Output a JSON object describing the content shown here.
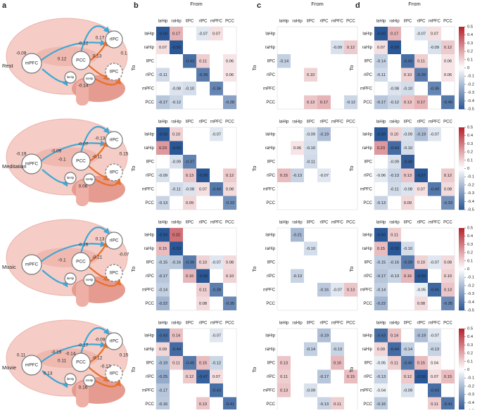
{
  "figure": {
    "panels": [
      "a",
      "b",
      "c",
      "d"
    ],
    "from_label": "From",
    "to_label": "To",
    "regions": [
      "laHip",
      "raHip",
      "lIPC",
      "rIPC",
      "mPFC",
      "PCC"
    ],
    "conditions": [
      "Rest",
      "Meditation",
      "Music",
      "Movie"
    ],
    "colorbar": {
      "zlim": [
        -0.5,
        0.5
      ],
      "ticks": [
        0.5,
        0.4,
        0.3,
        0.2,
        0.1,
        0,
        -0.1,
        -0.2,
        -0.3,
        -0.4,
        -0.5
      ],
      "negative_color": "#2a5796",
      "positive_color": "#b5212b"
    }
  },
  "brain_labels": [
    [
      "-0.12",
      "0.17",
      "0.1",
      "0.12",
      "0.13",
      "-0.09",
      "-0.14"
    ],
    [
      "-0.07",
      "-0.13",
      "0.15",
      "-0.1",
      "-0.11",
      "-0.19",
      "0.06",
      "-0.09"
    ],
    [
      "-0.16",
      "0.13",
      "-0.07",
      "-0.1",
      "-0.21"
    ],
    [
      "-0.17",
      "-0.09",
      "0.15",
      "0.11",
      "-0.12",
      "0.11",
      "0.16",
      "-0.19",
      "-0.13",
      "0.13",
      "-0.14"
    ]
  ],
  "chart_data": [
    {
      "type": "heatmap",
      "values": [
        [
          -0.5,
          0.17,
          null,
          -0.07,
          0.07,
          null
        ],
        [
          0.07,
          -0.5,
          null,
          null,
          null,
          null
        ],
        [
          null,
          null,
          -0.43,
          0.11,
          null,
          0.06
        ],
        [
          -0.11,
          null,
          null,
          -0.39,
          null,
          0.06
        ],
        [
          null,
          -0.08,
          -0.1,
          null,
          -0.36,
          null
        ],
        [
          -0.17,
          -0.12,
          null,
          null,
          null,
          -0.28
        ]
      ],
      "value_labels": [
        [
          "-0.50",
          "0.17",
          null,
          "-0.07",
          "0.07",
          null
        ],
        [
          "0.07",
          "-0.50",
          null,
          null,
          null,
          null
        ],
        [
          null,
          null,
          "-0.43",
          "0.11",
          null,
          "0.06"
        ],
        [
          "-0.11",
          null,
          null,
          "-0.39",
          null,
          "0.06"
        ],
        [
          null,
          "-0.08",
          "-0.10",
          null,
          "-0.36",
          null
        ],
        [
          "-0.17",
          "-0.12",
          null,
          null,
          null,
          "-0.28"
        ]
      ]
    },
    {
      "type": "heatmap",
      "values": [
        [
          null,
          null,
          null,
          null,
          null,
          null
        ],
        [
          null,
          null,
          null,
          null,
          -0.09,
          0.12
        ],
        [
          -0.14,
          null,
          null,
          null,
          null,
          null
        ],
        [
          null,
          null,
          0.1,
          null,
          null,
          null
        ],
        [
          null,
          null,
          null,
          null,
          null,
          null
        ],
        [
          null,
          null,
          0.13,
          0.17,
          null,
          -0.12
        ]
      ],
      "value_labels": [
        [
          null,
          null,
          null,
          null,
          null,
          null
        ],
        [
          null,
          null,
          null,
          null,
          "-0.09",
          "0.12"
        ],
        [
          "-0.14",
          null,
          null,
          null,
          null,
          null
        ],
        [
          null,
          null,
          "0.10",
          null,
          null,
          null
        ],
        [
          null,
          null,
          null,
          null,
          null,
          null
        ],
        [
          null,
          null,
          "0.13",
          "0.17",
          null,
          "-0.12"
        ]
      ]
    },
    {
      "type": "heatmap",
      "values": [
        [
          -0.5,
          0.17,
          null,
          -0.07,
          0.07,
          null
        ],
        [
          0.07,
          -0.5,
          null,
          null,
          -0.09,
          0.12
        ],
        [
          -0.14,
          null,
          -0.43,
          0.11,
          null,
          0.06
        ],
        [
          -0.11,
          null,
          0.1,
          -0.39,
          null,
          0.06
        ],
        [
          null,
          -0.08,
          -0.1,
          null,
          -0.36,
          null
        ],
        [
          -0.17,
          -0.12,
          0.13,
          0.17,
          null,
          -0.4
        ]
      ],
      "value_labels": [
        [
          "-0.50",
          "0.17",
          null,
          "-0.07",
          "0.07",
          null
        ],
        [
          "0.07",
          "-0.50",
          null,
          null,
          "-0.09",
          "0.12"
        ],
        [
          "-0.14",
          null,
          "-0.43",
          "0.11",
          null,
          "0.06"
        ],
        [
          "-0.11",
          null,
          "0.10",
          "-0.39",
          null,
          "0.06"
        ],
        [
          null,
          "-0.08",
          "-0.10",
          null,
          "-0.36",
          null
        ],
        [
          "-0.17",
          "-0.12",
          "0.13",
          "0.17",
          null,
          "-0.40"
        ]
      ]
    },
    {
      "type": "heatmap",
      "values": [
        [
          -0.5,
          0.1,
          null,
          null,
          -0.07,
          null
        ],
        [
          0.23,
          -0.5,
          null,
          null,
          null,
          null
        ],
        [
          null,
          -0.09,
          -0.37,
          null,
          null,
          null
        ],
        [
          -0.09,
          null,
          0.13,
          -0.5,
          null,
          0.12
        ],
        [
          null,
          -0.11,
          -0.08,
          0.07,
          -0.4,
          0.08
        ],
        [
          -0.13,
          null,
          0.09,
          null,
          null,
          -0.33
        ]
      ],
      "value_labels": [
        [
          "-0.50",
          "0.10",
          null,
          null,
          "-0.07",
          null
        ],
        [
          "0.23",
          "-0.50",
          null,
          null,
          null,
          null
        ],
        [
          null,
          "-0.09",
          "-0.37",
          null,
          null,
          null
        ],
        [
          "-0.09",
          null,
          "0.13",
          "-0.50",
          null,
          "0.12"
        ],
        [
          null,
          "-0.11",
          "-0.08",
          "0.07",
          "-0.40",
          "0.08"
        ],
        [
          "-0.13",
          null,
          "0.09",
          null,
          null,
          "-0.33"
        ]
      ]
    },
    {
      "type": "heatmap",
      "values": [
        [
          null,
          null,
          -0.09,
          -0.19,
          null,
          null
        ],
        [
          null,
          0.06,
          -0.1,
          null,
          null,
          null
        ],
        [
          null,
          null,
          -0.11,
          null,
          null,
          null
        ],
        [
          0.15,
          -0.13,
          null,
          -0.07,
          null,
          null
        ],
        [
          null,
          null,
          null,
          null,
          null,
          null
        ],
        [
          null,
          null,
          null,
          null,
          null,
          null
        ]
      ],
      "value_labels": [
        [
          null,
          null,
          "-0.09",
          "-0.19",
          null,
          null
        ],
        [
          null,
          "0.06",
          "-0.10",
          null,
          null,
          null
        ],
        [
          null,
          null,
          "-0.11",
          null,
          null,
          null
        ],
        [
          "0.15",
          "-0.13",
          null,
          "-0.07",
          null,
          null
        ],
        [
          null,
          null,
          null,
          null,
          null,
          null
        ],
        [
          null,
          null,
          null,
          null,
          null,
          null
        ]
      ]
    },
    {
      "type": "heatmap",
      "values": [
        [
          -0.5,
          0.1,
          -0.09,
          -0.19,
          -0.07,
          null
        ],
        [
          0.23,
          -0.44,
          -0.1,
          null,
          null,
          null
        ],
        [
          null,
          -0.09,
          -0.48,
          null,
          null,
          null
        ],
        [
          -0.06,
          -0.13,
          0.13,
          -0.57,
          null,
          0.12
        ],
        [
          null,
          -0.11,
          -0.08,
          0.07,
          -0.4,
          0.08
        ],
        [
          -0.13,
          null,
          0.09,
          null,
          null,
          -0.33
        ]
      ],
      "value_labels": [
        [
          "-0.50",
          "0.10",
          "-0.09",
          "-0.19",
          "-0.07",
          null
        ],
        [
          "0.23",
          "-0.44",
          "-0.10",
          null,
          null,
          null
        ],
        [
          null,
          "-0.09",
          "-0.48",
          null,
          null,
          null
        ],
        [
          "-0.06",
          "-0.13",
          "0.13",
          "-0.57",
          null,
          "0.12"
        ],
        [
          null,
          "-0.11",
          "-0.08",
          "0.07",
          "-0.40",
          "0.08"
        ],
        [
          "-0.13",
          null,
          "0.09",
          null,
          null,
          "-0.33"
        ]
      ]
    },
    {
      "type": "heatmap",
      "values": [
        [
          -0.5,
          0.32,
          null,
          null,
          null,
          null
        ],
        [
          0.15,
          -0.5,
          null,
          null,
          null,
          null
        ],
        [
          -0.15,
          -0.16,
          -0.39,
          0.1,
          -0.07,
          0.08
        ],
        [
          -0.17,
          null,
          0.16,
          -0.5,
          null,
          0.1
        ],
        [
          -0.14,
          null,
          null,
          0.11,
          -0.38,
          null
        ],
        [
          -0.22,
          null,
          null,
          0.08,
          null,
          -0.35
        ]
      ],
      "value_labels": [
        [
          "-0.50",
          "0.32",
          null,
          null,
          null,
          null
        ],
        [
          "0.15",
          "-0.50",
          null,
          null,
          null,
          null
        ],
        [
          "-0.15",
          "-0.16",
          "-0.39",
          "0.10",
          "-0.07",
          "0.08"
        ],
        [
          "-0.17",
          null,
          "0.16",
          "-0.50",
          null,
          "0.10"
        ],
        [
          "-0.14",
          null,
          null,
          "0.11",
          "-0.38",
          null
        ],
        [
          "-0.22",
          null,
          null,
          "0.08",
          null,
          "-0.35"
        ]
      ]
    },
    {
      "type": "heatmap",
      "values": [
        [
          null,
          -0.21,
          null,
          null,
          null,
          null
        ],
        [
          null,
          null,
          -0.1,
          null,
          null,
          null
        ],
        [
          null,
          null,
          null,
          null,
          null,
          null
        ],
        [
          null,
          -0.13,
          null,
          null,
          null,
          null
        ],
        [
          null,
          null,
          null,
          -0.16,
          -0.07,
          0.13
        ],
        [
          null,
          null,
          null,
          null,
          null,
          null
        ]
      ],
      "value_labels": [
        [
          null,
          "-0.21",
          null,
          null,
          null,
          null
        ],
        [
          null,
          null,
          "-0.10",
          null,
          null,
          null
        ],
        [
          null,
          null,
          null,
          null,
          null,
          null
        ],
        [
          null,
          "-0.13",
          null,
          null,
          null,
          null
        ],
        [
          null,
          null,
          null,
          "-0.16",
          "-0.07",
          "0.13"
        ],
        [
          null,
          null,
          null,
          null,
          null,
          null
        ]
      ]
    },
    {
      "type": "heatmap",
      "values": [
        [
          -0.5,
          0.11,
          null,
          null,
          null,
          null
        ],
        [
          0.15,
          -0.5,
          -0.1,
          null,
          null,
          null
        ],
        [
          -0.15,
          -0.16,
          -0.39,
          0.1,
          -0.07,
          0.08
        ],
        [
          -0.17,
          -0.13,
          0.16,
          -0.5,
          null,
          0.1
        ],
        [
          -0.14,
          null,
          null,
          -0.05,
          -0.45,
          0.13
        ],
        [
          -0.22,
          null,
          null,
          0.08,
          null,
          -0.35
        ]
      ],
      "value_labels": [
        [
          "-0.50",
          "0.11",
          null,
          null,
          null,
          null
        ],
        [
          "0.15",
          "-0.50",
          "-0.10",
          null,
          null,
          null
        ],
        [
          "-0.15",
          "-0.16",
          "-0.39",
          "0.10",
          "-0.07",
          "0.08"
        ],
        [
          "-0.17",
          "-0.13",
          "0.16",
          "-0.50",
          null,
          "0.10"
        ],
        [
          "-0.14",
          null,
          null,
          "-0.05",
          "-0.45",
          "0.13"
        ],
        [
          "-0.22",
          null,
          null,
          "0.08",
          null,
          "-0.35"
        ]
      ]
    },
    {
      "type": "heatmap",
      "values": [
        [
          -0.43,
          0.14,
          null,
          null,
          -0.07,
          null
        ],
        [
          0.09,
          -0.44,
          null,
          null,
          null,
          null
        ],
        [
          -0.19,
          0.11,
          -0.4,
          0.15,
          -0.12,
          null
        ],
        [
          -0.25,
          null,
          0.12,
          -0.47,
          0.07,
          null
        ],
        [
          -0.17,
          null,
          null,
          null,
          -0.43,
          null
        ],
        [
          -0.16,
          null,
          null,
          0.13,
          null,
          -0.41
        ]
      ],
      "value_labels": [
        [
          "-0.43",
          "0.14",
          null,
          null,
          "-0.07",
          null
        ],
        [
          "0.09",
          "-0.44",
          null,
          null,
          null,
          null
        ],
        [
          "-0.19",
          "0.11",
          "-0.40",
          "0.15",
          "-0.12",
          null
        ],
        [
          "-0.25",
          null,
          "0.12",
          "-0.47",
          "0.07",
          null
        ],
        [
          "-0.17",
          null,
          null,
          null,
          "-0.43",
          null
        ],
        [
          "-0.16",
          null,
          null,
          "0.13",
          null,
          "-0.41"
        ]
      ]
    },
    {
      "type": "heatmap",
      "values": [
        [
          null,
          null,
          null,
          -0.19,
          null,
          null
        ],
        [
          null,
          null,
          -0.14,
          null,
          -0.13,
          null
        ],
        [
          0.13,
          null,
          null,
          null,
          0.16,
          null
        ],
        [
          0.11,
          null,
          null,
          -0.17,
          null,
          0.15
        ],
        [
          0.13,
          null,
          -0.09,
          null,
          null,
          null
        ],
        [
          null,
          null,
          null,
          -0.13,
          0.11,
          null
        ]
      ],
      "value_labels": [
        [
          null,
          null,
          null,
          "-0.19",
          null,
          null
        ],
        [
          null,
          null,
          "-0.14",
          null,
          "-0.13",
          null
        ],
        [
          "0.13",
          null,
          null,
          null,
          "0.16",
          null
        ],
        [
          "0.11",
          null,
          null,
          "-0.17",
          null,
          "0.15"
        ],
        [
          "0.13",
          null,
          "-0.09",
          null,
          null,
          null
        ],
        [
          null,
          null,
          null,
          "-0.13",
          "0.11",
          null
        ]
      ]
    },
    {
      "type": "heatmap",
      "values": [
        [
          -0.43,
          0.14,
          null,
          -0.19,
          -0.07,
          null
        ],
        [
          0.09,
          -0.44,
          -0.14,
          null,
          -0.13,
          null
        ],
        [
          -0.05,
          0.11,
          -0.4,
          0.15,
          0.04,
          null
        ],
        [
          -0.13,
          null,
          0.12,
          -0.59,
          0.07,
          0.15
        ],
        [
          -0.04,
          null,
          -0.09,
          null,
          -0.43,
          null
        ],
        [
          -0.16,
          null,
          null,
          null,
          0.11,
          -0.41
        ]
      ],
      "value_labels": [
        [
          "-0.43",
          "0.14",
          null,
          "-0.19",
          "-0.07",
          null
        ],
        [
          "0.09",
          "-0.44",
          "-0.14",
          null,
          "-0.13",
          null
        ],
        [
          "-0.05",
          "0.11",
          "-0.40",
          "0.15",
          "0.04",
          null
        ],
        [
          "-0.13",
          null,
          "0.12",
          "-0.59",
          "0.07",
          "0.15"
        ],
        [
          "-0.04",
          null,
          "-0.09",
          null,
          "-0.43",
          null
        ],
        [
          "-0.16",
          null,
          null,
          null,
          "0.11",
          "-0.41"
        ]
      ]
    }
  ]
}
